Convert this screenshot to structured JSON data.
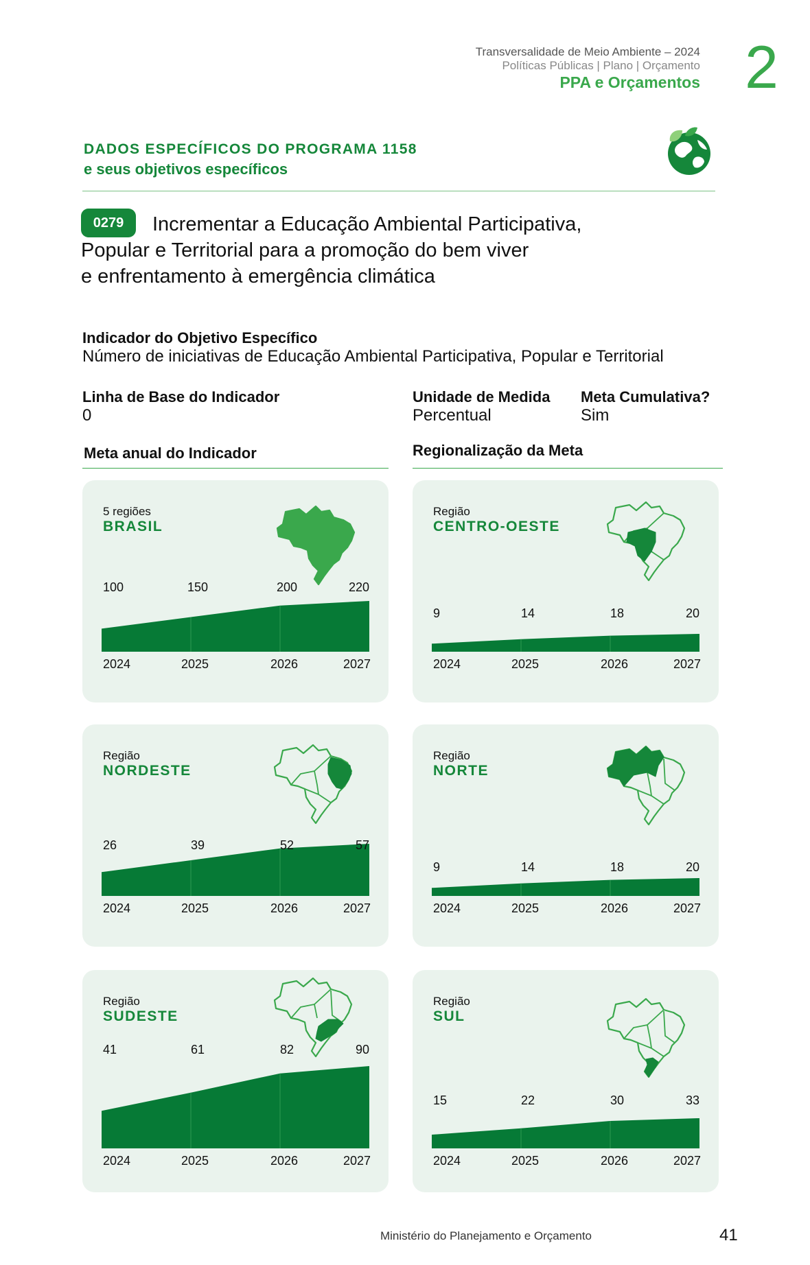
{
  "header": {
    "line1": "Transversalidade de Meio Ambiente – 2024",
    "line2": "Políticas Públicas | Plano | Orçamento",
    "line3": "PPA e Orçamentos",
    "chapter": "2"
  },
  "section": {
    "title": "DADOS ESPECÍFICOS DO PROGRAMA 1158",
    "subtitle": "e seus objetivos específicos"
  },
  "objective": {
    "code": "0279",
    "title_lines": [
      "Incrementar a Educação Ambiental Participativa,",
      "Popular e Territorial para a promoção do bem viver",
      "e enfrentamento à emergência climática"
    ]
  },
  "indicator": {
    "label": "Indicador do Objetivo Específico",
    "value": "Número de iniciativas de Educação Ambiental Participativa, Popular e Territorial"
  },
  "baseline": {
    "label": "Linha de Base do Indicador",
    "value": "0"
  },
  "unit": {
    "label": "Unidade de Medida",
    "value": "Percentual"
  },
  "cumulative": {
    "label": "Meta Cumulativa?",
    "value": "Sim"
  },
  "annual_goal_label": "Meta anual do Indicador",
  "regional_goal_label": "Regionalização da Meta",
  "colors": {
    "green_dark": "#067a36",
    "green_light": "#3aa84c",
    "card_bg": "#eaf3ed"
  },
  "chart_data": [
    {
      "type": "area",
      "subtitle": "5 regiões",
      "title": "BRASIL",
      "x": [
        "2024",
        "2025",
        "2026",
        "2027"
      ],
      "values": [
        100,
        150,
        200,
        220
      ],
      "map_icon": "brazil-map-icon"
    },
    {
      "type": "area",
      "subtitle": "Região",
      "title": "CENTRO-OESTE",
      "x": [
        "2024",
        "2025",
        "2026",
        "2027"
      ],
      "values": [
        9,
        14,
        18,
        20
      ],
      "map_icon": "centro-oeste-map-icon"
    },
    {
      "type": "area",
      "subtitle": "Região",
      "title": "NORDESTE",
      "x": [
        "2024",
        "2025",
        "2026",
        "2027"
      ],
      "values": [
        26,
        39,
        52,
        57
      ],
      "map_icon": "nordeste-map-icon"
    },
    {
      "type": "area",
      "subtitle": "Região",
      "title": "NORTE",
      "x": [
        "2024",
        "2025",
        "2026",
        "2027"
      ],
      "values": [
        9,
        14,
        18,
        20
      ],
      "map_icon": "norte-map-icon"
    },
    {
      "type": "area",
      "subtitle": "Região",
      "title": "SUDESTE",
      "x": [
        "2024",
        "2025",
        "2026",
        "2027"
      ],
      "values": [
        41,
        61,
        82,
        90
      ],
      "map_icon": "sudeste-map-icon"
    },
    {
      "type": "area",
      "subtitle": "Região",
      "title": "SUL",
      "x": [
        "2024",
        "2025",
        "2026",
        "2027"
      ],
      "values": [
        15,
        22,
        30,
        33
      ],
      "map_icon": "sul-map-icon"
    }
  ],
  "footer": {
    "ministry": "Ministério do Planejamento e Orçamento",
    "page": "41"
  }
}
